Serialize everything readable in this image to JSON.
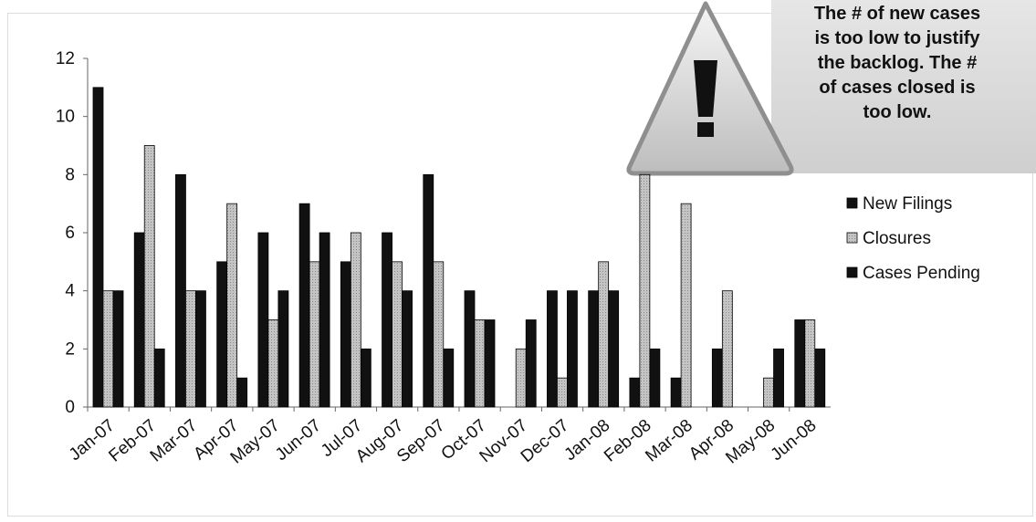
{
  "callout": {
    "text": "The # of new cases\nis too low to justify\nthe backlog. The #\nof cases closed is\ntoo low.",
    "icon": "warning-icon"
  },
  "chart_data": {
    "type": "bar",
    "categories": [
      "Jan-07",
      "Feb-07",
      "Mar-07",
      "Apr-07",
      "May-07",
      "Jun-07",
      "Jul-07",
      "Aug-07",
      "Sep-07",
      "Oct-07",
      "Nov-07",
      "Dec-07",
      "Jan-08",
      "Feb-08",
      "Mar-08",
      "Apr-08",
      "May-08",
      "Jun-08"
    ],
    "series": [
      {
        "name": "New Filings",
        "color": "#111111",
        "values": [
          11,
          6,
          8,
          5,
          6,
          7,
          5,
          6,
          8,
          4,
          0,
          4,
          4,
          1,
          1,
          2,
          0,
          3
        ]
      },
      {
        "name": "Closures",
        "color": "#b3b3b3",
        "values": [
          4,
          9,
          4,
          7,
          3,
          5,
          6,
          5,
          5,
          3,
          2,
          1,
          5,
          8,
          7,
          4,
          1,
          3
        ]
      },
      {
        "name": "Cases Pending",
        "color": "#111111",
        "values": [
          4,
          2,
          4,
          1,
          4,
          6,
          2,
          4,
          2,
          3,
          3,
          4,
          4,
          2,
          0,
          0,
          2,
          2
        ]
      }
    ],
    "ylim": [
      0,
      12
    ],
    "yticks": [
      0,
      2,
      4,
      6,
      8,
      10,
      12
    ],
    "legend_position": "right",
    "grid": false
  }
}
